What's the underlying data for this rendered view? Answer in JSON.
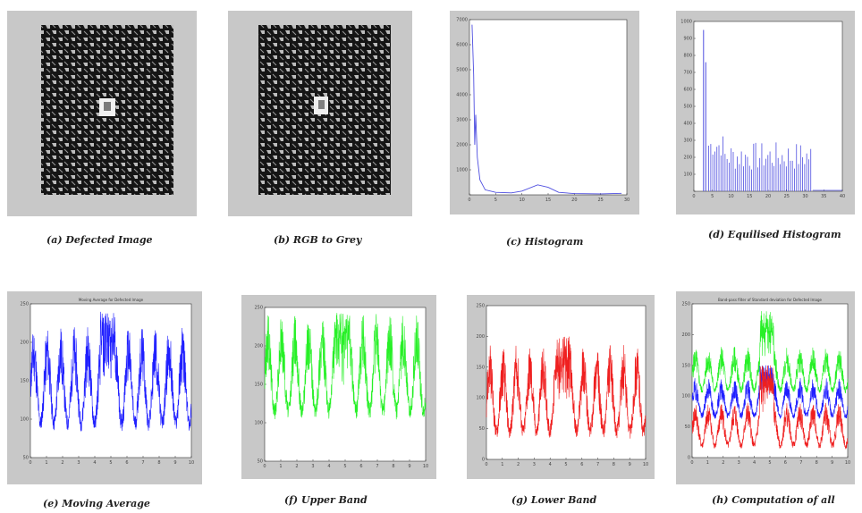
{
  "figure": {
    "captions": {
      "a": "(a) Defected Image",
      "b": "(b) RGB to Grey",
      "c": "(c) Histogram",
      "d": "(d) Equilised Histogram",
      "e": "(e) Moving Average",
      "f": "(f) Upper Band",
      "g": "(g) Lower Band",
      "h": "(h) Computation of all"
    }
  },
  "chart_data": [
    {
      "id": "c",
      "type": "line",
      "title": "",
      "color": "#4f4fe0",
      "xlim": [
        0,
        30
      ],
      "ylim": [
        0,
        7000
      ],
      "xticks": [
        "0",
        "5",
        "10",
        "15",
        "20",
        "25",
        "30"
      ],
      "yticks": [
        "",
        "1000",
        "2000",
        "3000",
        "4000",
        "5000",
        "6000",
        "7000"
      ],
      "x": [
        0.5,
        0.8,
        1.0,
        1.2,
        1.5,
        2,
        3,
        5,
        8,
        10,
        13,
        15,
        17,
        20,
        25,
        29
      ],
      "y": [
        6800,
        4800,
        2000,
        3200,
        1500,
        600,
        200,
        100,
        80,
        150,
        400,
        300,
        100,
        50,
        40,
        60
      ]
    },
    {
      "id": "d",
      "type": "bar",
      "title": "",
      "color": "#4f4fe0",
      "xlim": [
        0,
        40
      ],
      "ylim": [
        0,
        1000
      ],
      "xticks": [
        "0",
        "5",
        "10",
        "15",
        "20",
        "25",
        "30",
        "35",
        "40"
      ],
      "yticks": [
        "",
        "100",
        "200",
        "300",
        "400",
        "500",
        "600",
        "700",
        "800",
        "900",
        "1000"
      ],
      "note": "equalised histogram: sparse spikes, first spike near 950 at x≈3, remainder between 150 and 300 up to x≈32"
    },
    {
      "id": "e",
      "type": "line",
      "title": "Moving Average for Defected Image",
      "series": [
        {
          "color": "#1f1fff"
        }
      ],
      "xlim": [
        0,
        10
      ],
      "ylim": [
        50,
        250
      ],
      "xticks": [
        "0",
        "1",
        "2",
        "3",
        "4",
        "5",
        "6",
        "7",
        "8",
        "9",
        "10"
      ],
      "yticks": [
        "50",
        "100",
        "150",
        "200",
        "250"
      ],
      "base": 140,
      "amp": 45,
      "peak_center": 4.8,
      "peak_value": 240
    },
    {
      "id": "f",
      "type": "line",
      "title": "",
      "series": [
        {
          "color": "#27f027"
        }
      ],
      "xlim": [
        0,
        10
      ],
      "ylim": [
        50,
        250
      ],
      "xticks": [
        "0",
        "1",
        "2",
        "3",
        "4",
        "5",
        "6",
        "7",
        "8",
        "9",
        "10"
      ],
      "yticks": [
        "50",
        "100",
        "150",
        "200",
        "250"
      ],
      "base": 160,
      "amp": 45,
      "peak_center": 4.8,
      "peak_value": 245
    },
    {
      "id": "g",
      "type": "line",
      "title": "",
      "series": [
        {
          "color": "#ef1f1f"
        }
      ],
      "xlim": [
        0,
        10
      ],
      "ylim": [
        0,
        250
      ],
      "xticks": [
        "0",
        "1",
        "2",
        "3",
        "4",
        "5",
        "6",
        "7",
        "8",
        "9",
        "10"
      ],
      "yticks": [
        "0",
        "50",
        "100",
        "150",
        "200",
        "250"
      ],
      "base": 95,
      "amp": 50,
      "peak_center": 4.8,
      "peak_value": 200
    },
    {
      "id": "h",
      "type": "line",
      "title": "Band-pass filter of Standard deviation for Defected Image",
      "series": [
        {
          "color": "#27f027"
        },
        {
          "color": "#1f1fff"
        },
        {
          "color": "#ef1f1f"
        }
      ],
      "xlim": [
        0,
        10
      ],
      "ylim": [
        0,
        250
      ],
      "xticks": [
        "0",
        "1",
        "2",
        "3",
        "4",
        "5",
        "6",
        "7",
        "8",
        "9",
        "10"
      ],
      "yticks": [
        "0",
        "50",
        "100",
        "150",
        "200",
        "250"
      ]
    }
  ]
}
